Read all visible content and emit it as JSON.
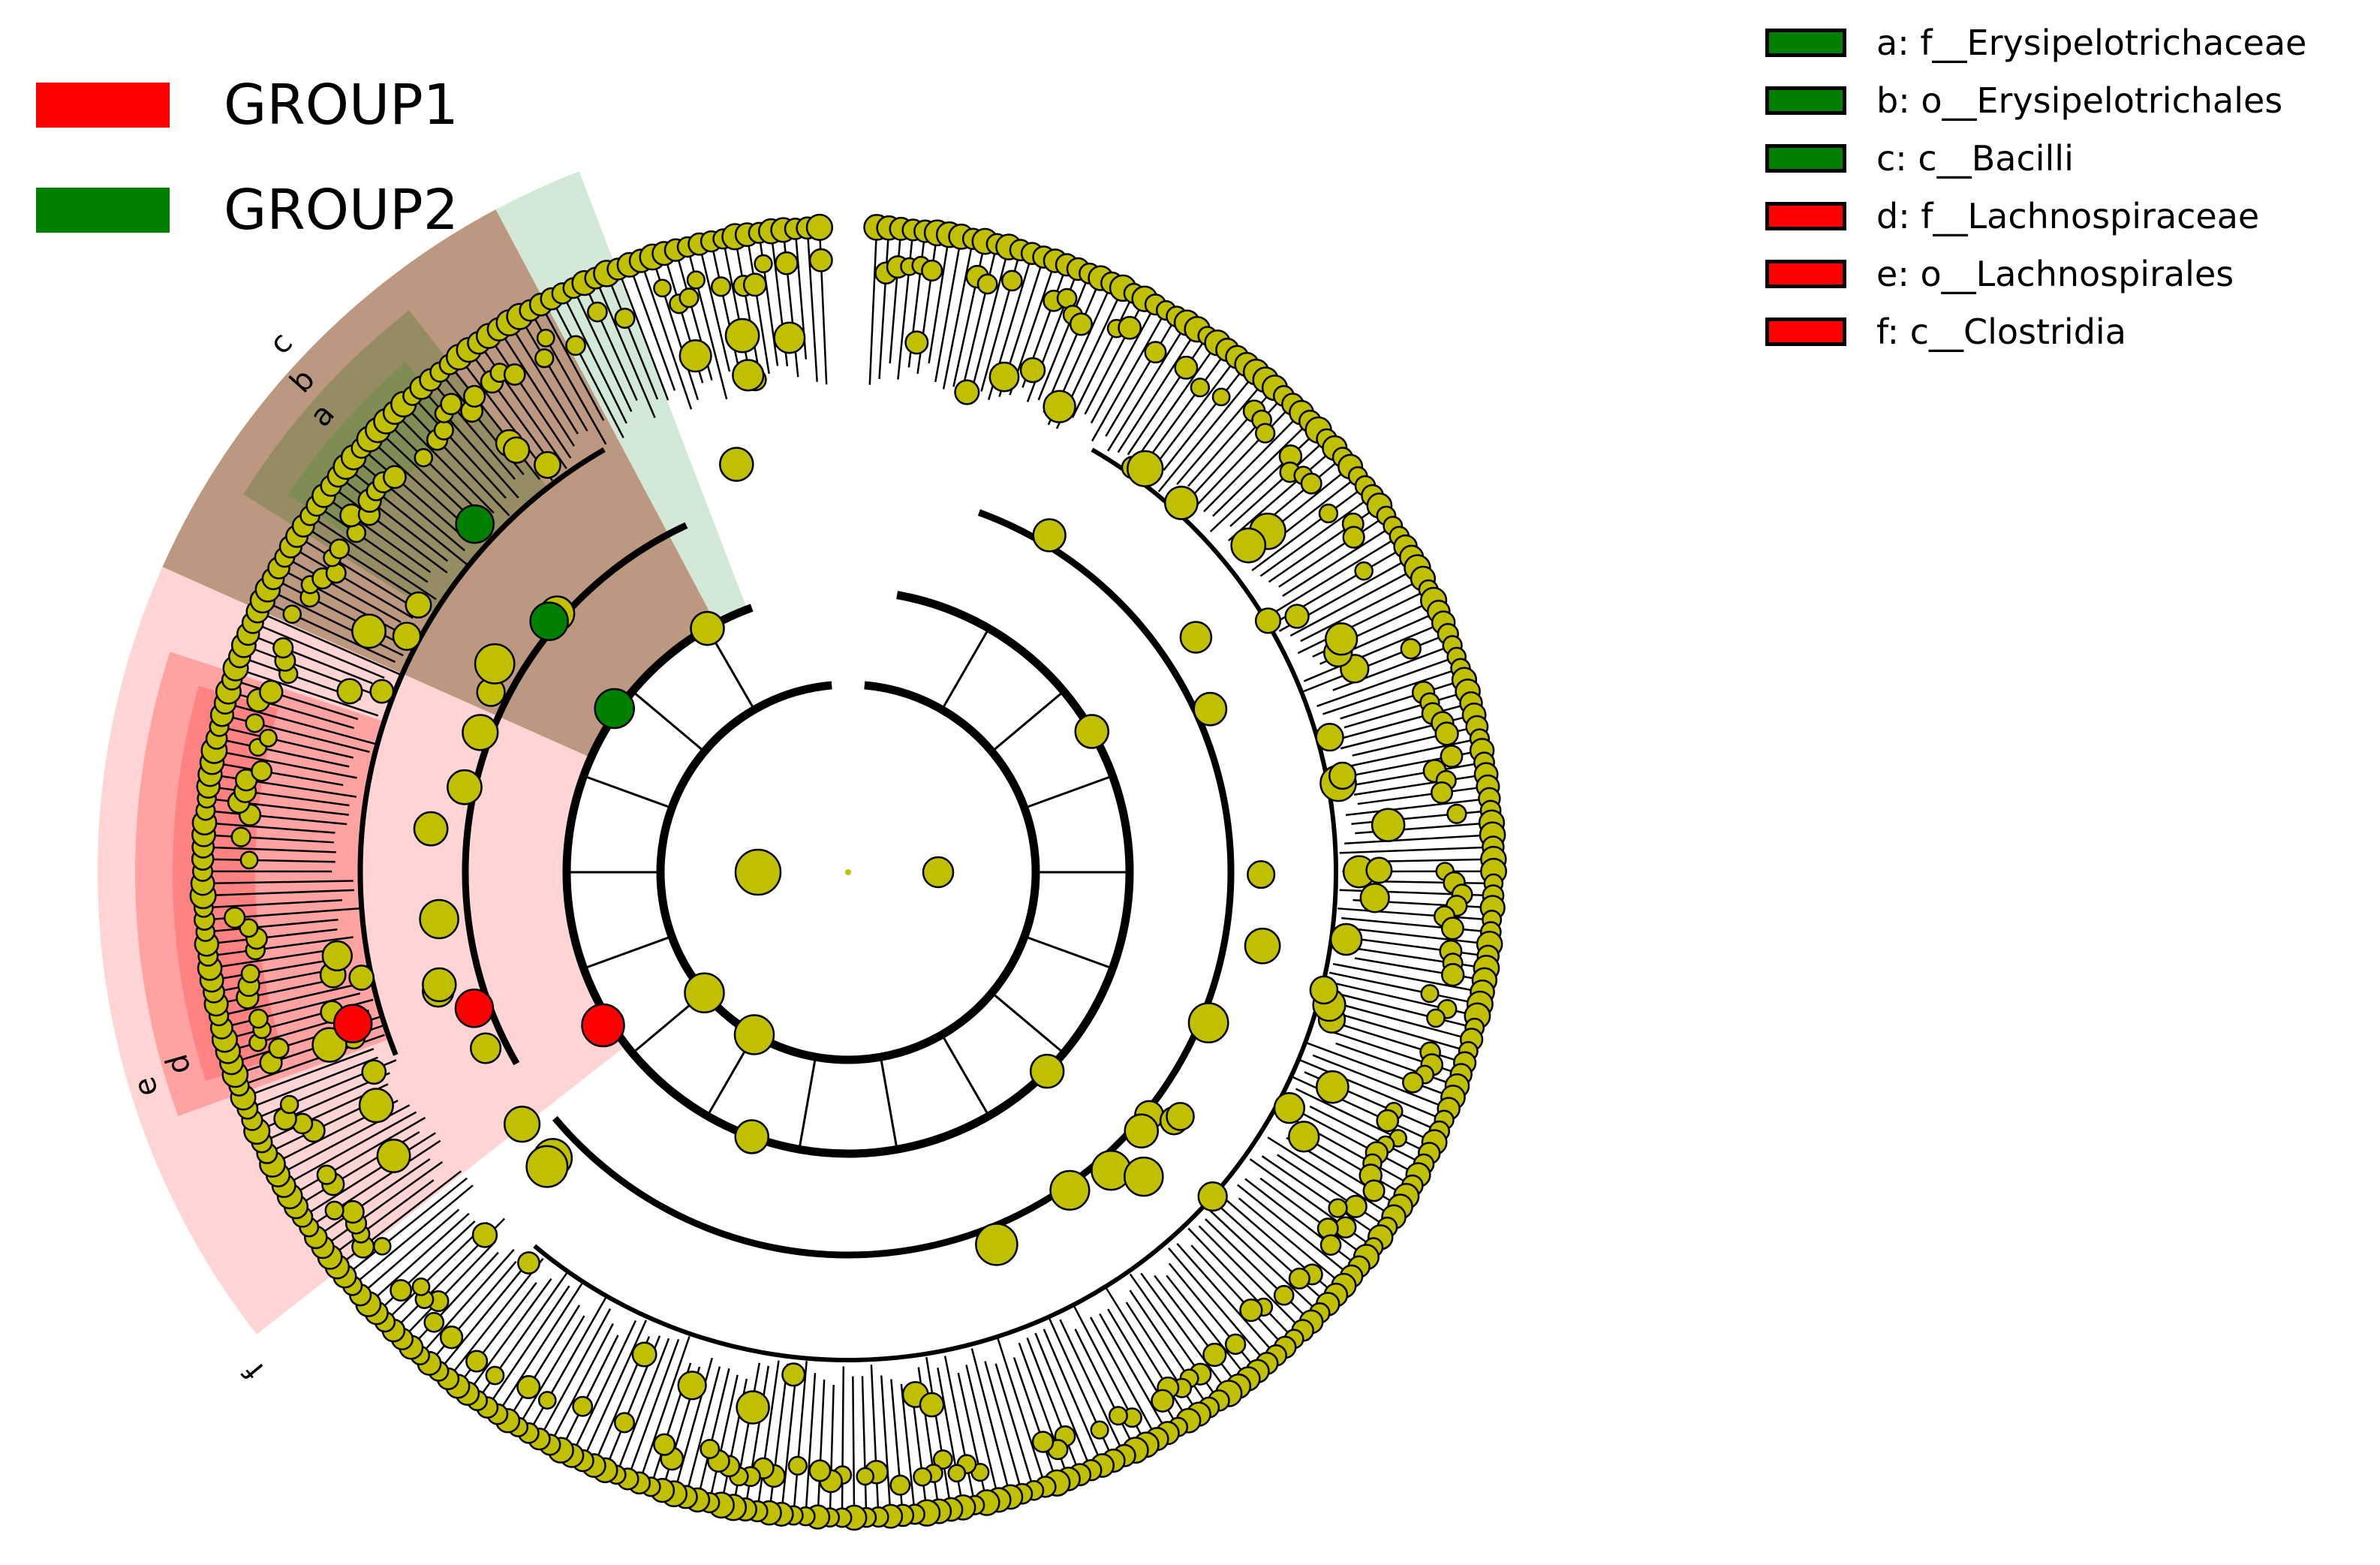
{
  "colors": {
    "group1": "#ff0000",
    "group2": "#008000",
    "node": "#c0c000",
    "sector_c": "#b1866a",
    "sector_c_group2": "#c9e5cf",
    "sector_b": "#8f8a5f",
    "sector_a": "#7a8d50",
    "sector_f": "#ffcccc",
    "sector_e": "#ff9999",
    "sector_d": "#ff7c7c"
  },
  "groups": [
    {
      "label": "GROUP1",
      "color": "#ff0000"
    },
    {
      "label": "GROUP2",
      "color": "#008000"
    }
  ],
  "biomarkers": [
    {
      "key": "a",
      "name": "f__Erysipelotrichaceae",
      "group": "GROUP2",
      "color": "#008000",
      "level": "family"
    },
    {
      "key": "b",
      "name": "o__Erysipelotrichales",
      "group": "GROUP2",
      "color": "#008000",
      "level": "order"
    },
    {
      "key": "c",
      "name": "c__Bacilli",
      "group": "GROUP2",
      "color": "#008000",
      "level": "class"
    },
    {
      "key": "d",
      "name": "f__Lachnospiraceae",
      "group": "GROUP1",
      "color": "#ff0000",
      "level": "family"
    },
    {
      "key": "e",
      "name": "o__Lachnospirales",
      "group": "GROUP1",
      "color": "#ff0000",
      "level": "order"
    },
    {
      "key": "f",
      "name": "c__Clostridia",
      "group": "GROUP1",
      "color": "#ff0000",
      "level": "class"
    }
  ],
  "sector_letters": [
    "a",
    "b",
    "c",
    "d",
    "e",
    "f"
  ]
}
